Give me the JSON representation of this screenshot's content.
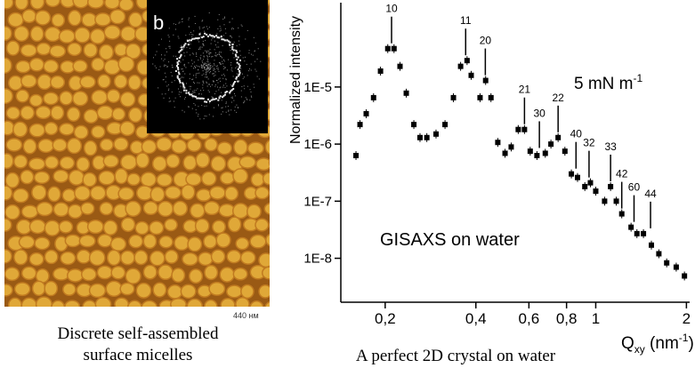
{
  "afm": {
    "inset_label": "b",
    "scale_label": "440 нм",
    "caption": [
      "Discrete self-assembled",
      "surface micelles"
    ]
  },
  "chart_data": {
    "type": "scatter",
    "caption": "A perfect 2D crystal on water",
    "x_label": [
      "Q",
      "xy",
      " (nm",
      "-1",
      ")"
    ],
    "y_label": "Normalized intensity",
    "annotations": [
      "GISAXS on water"
    ],
    "pressure": [
      "5 mN m",
      "-1"
    ],
    "xlog": true,
    "ylog": true,
    "color": "#000000",
    "xlim": [
      0.1425,
      2.05
    ],
    "ylim": [
      1.7e-09,
      0.0003
    ],
    "xticks": [
      {
        "value": 0.2,
        "label": "0,2"
      },
      {
        "value": 0.4,
        "label": "0,4"
      },
      {
        "value": 0.6,
        "label": "0,6"
      },
      {
        "value": 0.8,
        "label": "0,8"
      },
      1,
      2
    ],
    "yticks": [
      {
        "value": 1e-08,
        "label": "1E-8"
      },
      {
        "value": 1e-07,
        "label": "1E-7"
      },
      {
        "value": 1e-06,
        "label": "1E-6"
      },
      {
        "value": 1e-05,
        "label": "1E-5"
      }
    ],
    "x": [
      0.16,
      0.165,
      0.173,
      0.183,
      0.193,
      0.204,
      0.214,
      0.224,
      0.235,
      0.249,
      0.261,
      0.275,
      0.295,
      0.316,
      0.337,
      0.356,
      0.374,
      0.386,
      0.413,
      0.431,
      0.449,
      0.473,
      0.5,
      0.524,
      0.553,
      0.58,
      0.606,
      0.638,
      0.68,
      0.71,
      0.75,
      0.79,
      0.83,
      0.87,
      0.92,
      0.96,
      1.0,
      1.07,
      1.12,
      1.17,
      1.22,
      1.31,
      1.37,
      1.44,
      1.53,
      1.62,
      1.72,
      1.85,
      1.97
    ],
    "y": [
      6.3e-07,
      2.2e-06,
      3.4e-06,
      6.5e-06,
      1.9e-05,
      4.7e-05,
      4.7e-05,
      2.3e-05,
      7.8e-06,
      2.2e-06,
      1.3e-06,
      1.3e-06,
      1.5e-06,
      2.2e-06,
      6.5e-06,
      2.3e-05,
      2.9e-05,
      1.6e-05,
      6.5e-06,
      1.3e-05,
      6.5e-06,
      1.07e-06,
      6.9e-07,
      8.9e-07,
      1.8e-06,
      1.8e-06,
      7.5e-07,
      6.3e-07,
      6.9e-07,
      1e-06,
      1.3e-06,
      7.5e-07,
      3e-07,
      2.6e-07,
      1.8e-07,
      2.1e-07,
      1.5e-07,
      1e-07,
      1.8e-07,
      1e-07,
      6e-08,
      3.5e-08,
      2.7e-08,
      2.7e-08,
      1.7e-08,
      1.2e-08,
      8.3e-09,
      7e-09,
      4.9e-09
    ],
    "peaks": [
      {
        "label": "10",
        "x": 0.21,
        "y": 4.7e-05
      },
      {
        "label": "11",
        "x": 0.37,
        "y": 2.9e-05
      },
      {
        "label": "20",
        "x": 0.43,
        "y": 1.3e-05
      },
      {
        "label": "21",
        "x": 0.58,
        "y": 1.8e-06
      },
      {
        "label": "30",
        "x": 0.65,
        "y": 6.9e-07
      },
      {
        "label": "22",
        "x": 0.75,
        "y": 1.3e-06
      },
      {
        "label": "40",
        "x": 0.86,
        "y": 3e-07
      },
      {
        "label": "32",
        "x": 0.95,
        "y": 2.1e-07
      },
      {
        "label": "33",
        "x": 1.12,
        "y": 1.8e-07
      },
      {
        "label": "42",
        "x": 1.22,
        "y": 6e-08
      },
      {
        "label": "60",
        "x": 1.34,
        "y": 3.5e-08
      },
      {
        "label": "44",
        "x": 1.52,
        "y": 2.7e-08
      }
    ]
  }
}
